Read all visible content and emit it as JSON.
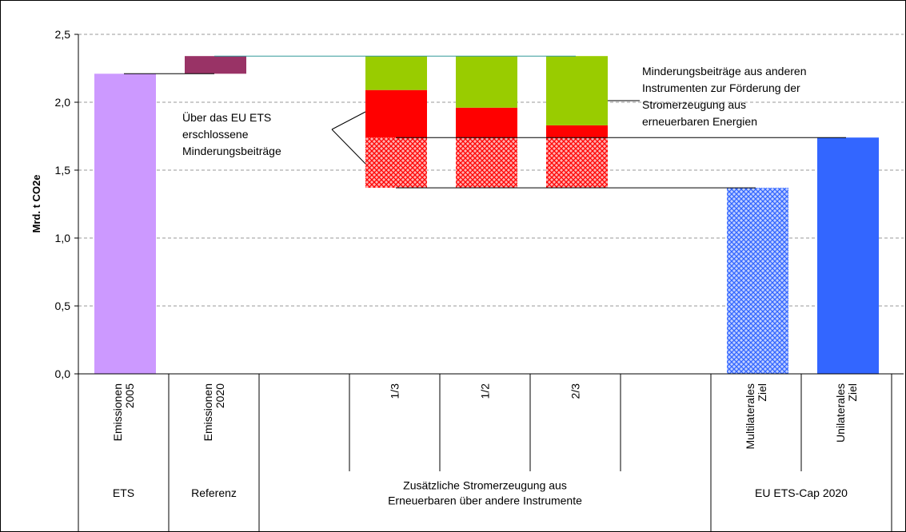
{
  "chart_data": {
    "type": "floating-bar",
    "ylabel": "Mrd. t CO2e",
    "categories": [
      [
        "Emissionen",
        "2005"
      ],
      [
        "Emissionen",
        "2020"
      ],
      null,
      [
        "1/3"
      ],
      [
        "1/2"
      ],
      [
        "2/3"
      ],
      null,
      [
        "Multilaterales",
        "Ziel"
      ],
      [
        "Unilaterales",
        "Ziel"
      ]
    ],
    "groups": [
      [
        "ETS"
      ],
      [
        "Referenz"
      ],
      [
        "Zusätzliche Stromerzeugung aus",
        "Erneuerbaren über andere Instrumente"
      ],
      [
        "EU ETS-Cap 2020"
      ]
    ],
    "series": [
      {
        "color": "#cc99ff",
        "low": [
          0,
          null,
          null,
          null,
          null,
          null,
          null,
          null,
          null
        ],
        "high": [
          2.21,
          null,
          null,
          null,
          null,
          null,
          null,
          null,
          null
        ]
      },
      {
        "color": "#993366",
        "low": [
          null,
          2.21,
          null,
          null,
          null,
          null,
          null,
          null,
          null
        ],
        "high": [
          null,
          2.34,
          null,
          null,
          null,
          null,
          null,
          null,
          null
        ]
      },
      {
        "color": "#ff0000",
        "hatched": true,
        "low": [
          null,
          null,
          null,
          1.37,
          1.37,
          1.37,
          null,
          null,
          null
        ],
        "high": [
          null,
          null,
          null,
          1.74,
          1.74,
          1.74,
          null,
          null,
          null
        ]
      },
      {
        "color": "#ff0000",
        "low": [
          null,
          null,
          null,
          1.74,
          1.74,
          1.74,
          null,
          null,
          null
        ],
        "high": [
          null,
          null,
          null,
          2.09,
          1.96,
          1.83,
          null,
          null,
          null
        ]
      },
      {
        "color": "#99cc00",
        "low": [
          null,
          null,
          null,
          2.09,
          1.96,
          1.83,
          null,
          null,
          null
        ],
        "high": [
          null,
          null,
          null,
          2.34,
          2.34,
          2.34,
          null,
          null,
          null
        ]
      },
      {
        "color": "#3366ff",
        "hatched": true,
        "low": [
          null,
          null,
          null,
          null,
          null,
          null,
          null,
          0,
          null
        ],
        "high": [
          null,
          null,
          null,
          null,
          null,
          null,
          null,
          1.37,
          null
        ]
      },
      {
        "color": "#3366ff",
        "low": [
          null,
          null,
          null,
          null,
          null,
          null,
          null,
          null,
          0
        ],
        "high": [
          null,
          null,
          null,
          null,
          null,
          null,
          null,
          null,
          1.74
        ]
      }
    ],
    "annotations": [
      [
        "Über das EU ETS",
        "erschlossene",
        "Minderungsbeiträge"
      ],
      [
        "Minderungsbeiträge aus anderen",
        "Instrumenten zur Förderung der",
        "Stromerzeugung aus",
        "erneuerbaren Energien"
      ]
    ],
    "ylim": [
      0,
      2.5
    ],
    "yticks": [
      {
        "value": 0,
        "label": "0,0"
      },
      {
        "value": 0.5,
        "label": "0,5"
      },
      {
        "value": 1,
        "label": "1,0"
      },
      {
        "value": 1.5,
        "label": "1,5"
      },
      {
        "value": 2,
        "label": "2,0"
      },
      {
        "value": 2.5,
        "label": "2,5"
      }
    ],
    "grid": true
  }
}
